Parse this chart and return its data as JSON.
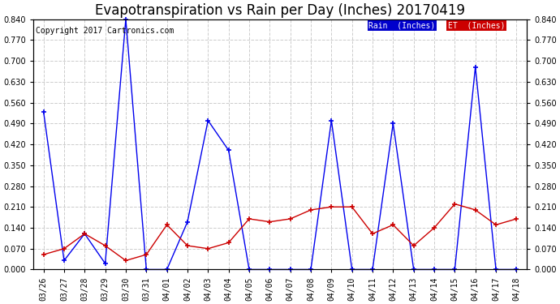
{
  "title": "Evapotranspiration vs Rain per Day (Inches) 20170419",
  "copyright": "Copyright 2017 Cartronics.com",
  "dates": [
    "03/26",
    "03/27",
    "03/28",
    "03/29",
    "03/30",
    "03/31",
    "04/01",
    "04/02",
    "04/03",
    "04/04",
    "04/05",
    "04/06",
    "04/07",
    "04/08",
    "04/09",
    "04/10",
    "04/11",
    "04/12",
    "04/13",
    "04/14",
    "04/15",
    "04/16",
    "04/17",
    "04/18"
  ],
  "rain": [
    0.53,
    0.03,
    0.12,
    0.02,
    0.84,
    0.0,
    0.0,
    0.16,
    0.5,
    0.4,
    0.0,
    0.0,
    0.0,
    0.0,
    0.5,
    0.0,
    0.0,
    0.49,
    0.0,
    0.0,
    0.0,
    0.68,
    0.0,
    0.0
  ],
  "et": [
    0.05,
    0.07,
    0.12,
    0.08,
    0.03,
    0.05,
    0.15,
    0.08,
    0.07,
    0.09,
    0.17,
    0.16,
    0.17,
    0.2,
    0.21,
    0.21,
    0.12,
    0.15,
    0.08,
    0.14,
    0.22,
    0.2,
    0.15,
    0.17
  ],
  "rain_color": "#0000EE",
  "et_color": "#CC0000",
  "background_color": "#FFFFFF",
  "plot_background_color": "#FFFFFF",
  "ylim": [
    0.0,
    0.84
  ],
  "yticks": [
    0.0,
    0.07,
    0.14,
    0.21,
    0.28,
    0.35,
    0.42,
    0.49,
    0.56,
    0.63,
    0.7,
    0.77,
    0.84
  ],
  "grid_color": "#CCCCCC",
  "legend_rain_bg": "#0000CC",
  "legend_et_bg": "#CC0000",
  "title_fontsize": 12,
  "tick_fontsize": 7,
  "copyright_fontsize": 7,
  "marker": "+",
  "markersize": 5,
  "linewidth": 1.0
}
